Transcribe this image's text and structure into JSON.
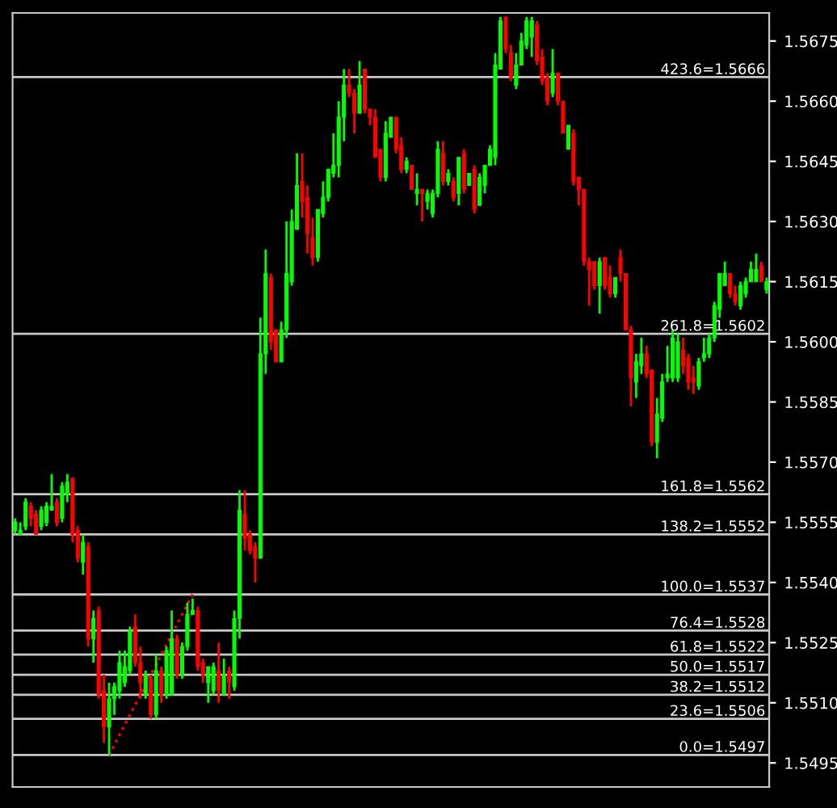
{
  "chart_data": {
    "type": "candlestick",
    "categories": [
      null,
      null,
      null,
      null,
      null,
      null,
      null,
      null,
      null,
      null,
      null,
      null,
      null,
      null,
      null,
      null,
      null,
      null,
      null,
      null,
      null,
      null,
      null,
      null,
      null,
      null,
      null,
      null,
      null,
      null,
      null,
      null,
      null,
      null,
      null,
      null,
      null,
      null,
      null,
      null,
      null,
      null,
      null,
      null,
      null,
      null,
      null,
      null,
      null,
      null,
      null,
      null,
      null,
      null,
      null,
      null,
      null,
      null,
      null,
      null,
      null,
      null,
      null,
      null,
      null,
      null,
      null,
      null,
      null,
      null,
      null,
      null,
      null,
      null,
      null,
      null,
      null,
      null,
      null,
      null,
      null,
      null,
      null,
      null,
      null,
      null,
      null,
      null,
      null,
      null,
      null,
      null,
      null,
      null,
      null,
      null,
      null,
      null,
      null,
      null,
      null,
      null,
      null,
      null,
      null,
      null,
      null,
      null,
      null,
      null,
      null,
      null,
      null,
      null,
      null,
      null,
      null,
      null,
      null,
      null,
      null,
      null,
      null,
      null,
      null,
      null,
      null,
      null,
      null,
      null,
      null,
      null,
      null,
      null,
      null,
      null,
      null,
      null,
      null,
      null,
      null,
      null,
      null,
      null,
      null
    ],
    "ohlc": [
      [
        1.5553,
        1.5556,
        1.5552,
        1.5555
      ],
      [
        1.5552,
        1.5555,
        1.5552,
        1.5553
      ],
      [
        1.5554,
        1.5561,
        1.5553,
        1.556
      ],
      [
        1.5559,
        1.556,
        1.5554,
        1.5556
      ],
      [
        1.5557,
        1.5558,
        1.5552,
        1.5552
      ],
      [
        1.5554,
        1.5559,
        1.5553,
        1.5558
      ],
      [
        1.5555,
        1.556,
        1.5554,
        1.5559
      ],
      [
        1.5558,
        1.5567,
        1.5558,
        1.5559
      ],
      [
        1.556,
        1.5561,
        1.5554,
        1.5555
      ],
      [
        1.5556,
        1.5565,
        1.5555,
        1.5564
      ],
      [
        1.5562,
        1.5567,
        1.556,
        1.5565
      ],
      [
        1.5566,
        1.5566,
        1.555,
        1.5552
      ],
      [
        1.5553,
        1.5554,
        1.5545,
        1.5546
      ],
      [
        1.5545,
        1.5552,
        1.5542,
        1.555
      ],
      [
        1.5549,
        1.555,
        1.5524,
        1.5526
      ],
      [
        1.5526,
        1.5533,
        1.552,
        1.5531
      ],
      [
        1.5533,
        1.5534,
        1.5511,
        1.5512
      ],
      [
        1.5513,
        1.5517,
        1.55,
        1.5504
      ],
      [
        1.5504,
        1.5515,
        1.5497,
        1.5511
      ],
      [
        1.5511,
        1.5515,
        1.5507,
        1.5514
      ],
      [
        1.5513,
        1.5523,
        1.5511,
        1.552
      ],
      [
        1.5515,
        1.5523,
        1.5514,
        1.5519
      ],
      [
        1.5518,
        1.5529,
        1.5517,
        1.5528
      ],
      [
        1.5529,
        1.5532,
        1.5519,
        1.552
      ],
      [
        1.552,
        1.5524,
        1.5511,
        1.5515
      ],
      [
        1.5512,
        1.5518,
        1.5511,
        1.5517
      ],
      [
        1.5516,
        1.5517,
        1.5506,
        1.5507
      ],
      [
        1.5507,
        1.5522,
        1.5506,
        1.5518
      ],
      [
        1.5518,
        1.5519,
        1.551,
        1.5512
      ],
      [
        1.5512,
        1.5524,
        1.5511,
        1.5523
      ],
      [
        1.5512,
        1.5533,
        1.5512,
        1.5526
      ],
      [
        1.5526,
        1.5527,
        1.5516,
        1.5517
      ],
      [
        1.5517,
        1.5525,
        1.5516,
        1.5524
      ],
      [
        1.5524,
        1.5535,
        1.5523,
        1.5532
      ],
      [
        1.5532,
        1.5536,
        1.5532,
        1.5533
      ],
      [
        1.5533,
        1.5534,
        1.5518,
        1.5519
      ],
      [
        1.552,
        1.5521,
        1.5515,
        1.5517
      ],
      [
        1.5515,
        1.5519,
        1.551,
        1.5519
      ],
      [
        1.5513,
        1.552,
        1.5512,
        1.5519
      ],
      [
        1.5518,
        1.5525,
        1.551,
        1.5513
      ],
      [
        1.5512,
        1.5521,
        1.5512,
        1.5517
      ],
      [
        1.5518,
        1.5519,
        1.5511,
        1.5515
      ],
      [
        1.5514,
        1.5533,
        1.5513,
        1.5531
      ],
      [
        1.5531,
        1.5563,
        1.5526,
        1.5558
      ],
      [
        1.5557,
        1.5563,
        1.5548,
        1.5551
      ],
      [
        1.5552,
        1.5553,
        1.5547,
        1.5548
      ],
      [
        1.5549,
        1.555,
        1.554,
        1.5546
      ],
      [
        1.5546,
        1.5606,
        1.5546,
        1.5597
      ],
      [
        1.5597,
        1.5623,
        1.5592,
        1.5617
      ],
      [
        1.5616,
        1.5617,
        1.5598,
        1.56
      ],
      [
        1.5603,
        1.5603,
        1.5595,
        1.5595
      ],
      [
        1.5595,
        1.5605,
        1.5595,
        1.5603
      ],
      [
        1.5603,
        1.563,
        1.5601,
        1.5617
      ],
      [
        1.5615,
        1.5633,
        1.5614,
        1.563
      ],
      [
        1.5628,
        1.5647,
        1.5628,
        1.5639
      ],
      [
        1.564,
        1.5647,
        1.5631,
        1.5635
      ],
      [
        1.5636,
        1.5639,
        1.5622,
        1.5627
      ],
      [
        1.5626,
        1.5631,
        1.5619,
        1.5621
      ],
      [
        1.5621,
        1.5633,
        1.562,
        1.5633
      ],
      [
        1.5632,
        1.564,
        1.5631,
        1.5636
      ],
      [
        1.5636,
        1.5643,
        1.5635,
        1.5643
      ],
      [
        1.5642,
        1.5652,
        1.5641,
        1.5644
      ],
      [
        1.5644,
        1.566,
        1.5641,
        1.5656
      ],
      [
        1.5656,
        1.5668,
        1.565,
        1.5664
      ],
      [
        1.5664,
        1.5668,
        1.5661,
        1.5662
      ],
      [
        1.5662,
        1.5663,
        1.5652,
        1.5657
      ],
      [
        1.5657,
        1.567,
        1.5657,
        1.5664
      ],
      [
        1.5668,
        1.5668,
        1.5657,
        1.5658
      ],
      [
        1.5658,
        1.5658,
        1.5654,
        1.5656
      ],
      [
        1.5656,
        1.5658,
        1.5646,
        1.5646
      ],
      [
        1.5648,
        1.5648,
        1.564,
        1.5641
      ],
      [
        1.5641,
        1.5655,
        1.564,
        1.5652
      ],
      [
        1.5651,
        1.5656,
        1.5651,
        1.5656
      ],
      [
        1.5656,
        1.5656,
        1.5647,
        1.5648
      ],
      [
        1.5649,
        1.5651,
        1.5642,
        1.5643
      ],
      [
        1.5643,
        1.5646,
        1.5642,
        1.5645
      ],
      [
        1.5644,
        1.5644,
        1.5638,
        1.5638
      ],
      [
        1.5637,
        1.5642,
        1.5634,
        1.5638
      ],
      [
        1.5638,
        1.5638,
        1.563,
        1.5637
      ],
      [
        1.5635,
        1.5638,
        1.5633,
        1.5637
      ],
      [
        1.5632,
        1.5638,
        1.5631,
        1.5637
      ],
      [
        1.5637,
        1.565,
        1.5636,
        1.5648
      ],
      [
        1.5647,
        1.565,
        1.5639,
        1.564
      ],
      [
        1.564,
        1.5643,
        1.5639,
        1.5642
      ],
      [
        1.564,
        1.5641,
        1.5635,
        1.5636
      ],
      [
        1.5637,
        1.5646,
        1.5634,
        1.5646
      ],
      [
        1.5647,
        1.5648,
        1.5637,
        1.5638
      ],
      [
        1.5639,
        1.5642,
        1.5639,
        1.5642
      ],
      [
        1.5643,
        1.5644,
        1.5632,
        1.5633
      ],
      [
        1.5634,
        1.5642,
        1.5634,
        1.5641
      ],
      [
        1.5639,
        1.5644,
        1.5637,
        1.5644
      ],
      [
        1.5644,
        1.5649,
        1.5644,
        1.5648
      ],
      [
        1.5646,
        1.5672,
        1.5644,
        1.5669
      ],
      [
        1.5668,
        1.5681,
        1.5668,
        1.568
      ],
      [
        1.5681,
        1.5681,
        1.5672,
        1.5673
      ],
      [
        1.5672,
        1.5674,
        1.5665,
        1.5666
      ],
      [
        1.5664,
        1.5672,
        1.5663,
        1.5669
      ],
      [
        1.5669,
        1.5677,
        1.5669,
        1.5675
      ],
      [
        1.5674,
        1.5681,
        1.5673,
        1.568
      ],
      [
        1.5676,
        1.5681,
        1.5671,
        1.568
      ],
      [
        1.5679,
        1.568,
        1.5669,
        1.567
      ],
      [
        1.5671,
        1.5673,
        1.5664,
        1.5665
      ],
      [
        1.5666,
        1.5667,
        1.5659,
        1.566
      ],
      [
        1.5662,
        1.5673,
        1.5661,
        1.5667
      ],
      [
        1.5667,
        1.5667,
        1.5659,
        1.566
      ],
      [
        1.566,
        1.566,
        1.5652,
        1.5652
      ],
      [
        1.5648,
        1.5654,
        1.5648,
        1.5654
      ],
      [
        1.5652,
        1.5653,
        1.5639,
        1.564
      ],
      [
        1.5641,
        1.5641,
        1.5634,
        1.5638
      ],
      [
        1.5638,
        1.5638,
        1.5619,
        1.562
      ],
      [
        1.562,
        1.5621,
        1.5609,
        1.5618
      ],
      [
        1.562,
        1.562,
        1.5613,
        1.5614
      ],
      [
        1.5614,
        1.5621,
        1.5607,
        1.562
      ],
      [
        1.5621,
        1.5621,
        1.5613,
        1.5614
      ],
      [
        1.5616,
        1.5619,
        1.5611,
        1.5612
      ],
      [
        1.5612,
        1.5616,
        1.5611,
        1.5616
      ],
      [
        1.5621,
        1.5623,
        1.5615,
        1.5617
      ],
      [
        1.5617,
        1.5617,
        1.5603,
        1.5603
      ],
      [
        1.5603,
        1.5604,
        1.5584,
        1.5591
      ],
      [
        1.559,
        1.5597,
        1.5586,
        1.5595
      ],
      [
        1.5594,
        1.5601,
        1.5592,
        1.5597
      ],
      [
        1.5597,
        1.5599,
        1.5591,
        1.5592
      ],
      [
        1.5593,
        1.5593,
        1.5574,
        1.5575
      ],
      [
        1.5575,
        1.5586,
        1.5571,
        1.5582
      ],
      [
        1.5581,
        1.5592,
        1.558,
        1.559
      ],
      [
        1.5591,
        1.5599,
        1.559,
        1.5592
      ],
      [
        1.5591,
        1.5603,
        1.559,
        1.5601
      ],
      [
        1.5591,
        1.5602,
        1.559,
        1.56
      ],
      [
        1.5598,
        1.5601,
        1.5592,
        1.5594
      ],
      [
        1.5596,
        1.5597,
        1.5588,
        1.559
      ],
      [
        1.5591,
        1.5594,
        1.5587,
        1.559
      ],
      [
        1.5589,
        1.5596,
        1.5588,
        1.5595
      ],
      [
        1.5596,
        1.5601,
        1.5595,
        1.5597
      ],
      [
        1.5597,
        1.5602,
        1.5596,
        1.5601
      ],
      [
        1.5601,
        1.561,
        1.56,
        1.5609
      ],
      [
        1.5608,
        1.5617,
        1.5606,
        1.5617
      ],
      [
        1.5614,
        1.562,
        1.5614,
        1.5617
      ],
      [
        1.5617,
        1.5617,
        1.5611,
        1.5612
      ],
      [
        1.5612,
        1.5614,
        1.5609,
        1.561
      ],
      [
        1.5609,
        1.5615,
        1.5608,
        1.5614
      ],
      [
        1.5612,
        1.5616,
        1.5611,
        1.5615
      ],
      [
        1.5615,
        1.562,
        1.5615,
        1.5618
      ],
      [
        1.5615,
        1.5622,
        1.5615,
        1.5618
      ],
      [
        1.5619,
        1.562,
        1.5615,
        1.5615
      ],
      [
        1.5613,
        1.5616,
        1.5612,
        1.5615
      ]
    ],
    "colors": [
      "#00ff00",
      "#00ff00",
      "#00ff00",
      "#ff0000",
      "#ff0000",
      "#00ff00",
      "#00ff00",
      "#00ff00",
      "#ff0000",
      "#00ff00",
      "#00ff00",
      "#ff0000",
      "#ff0000",
      "#00ff00",
      "#ff0000",
      "#00ff00",
      "#ff0000",
      "#ff0000",
      "#00ff00",
      "#00ff00",
      "#00ff00",
      "#00ff00",
      "#00ff00",
      "#ff0000",
      "#ff0000",
      "#00ff00",
      "#ff0000",
      "#00ff00",
      "#ff0000",
      "#00ff00",
      "#00ff00",
      "#ff0000",
      "#00ff00",
      "#00ff00",
      "#00ff00",
      "#ff0000",
      "#ff0000",
      "#00ff00",
      "#00ff00",
      "#ff0000",
      "#00ff00",
      "#ff0000",
      "#00ff00",
      "#00ff00",
      "#ff0000",
      "#ff0000",
      "#ff0000",
      "#00ff00",
      "#00ff00",
      "#ff0000",
      "#ff0000",
      "#00ff00",
      "#00ff00",
      "#00ff00",
      "#00ff00",
      "#ff0000",
      "#ff0000",
      "#ff0000",
      "#00ff00",
      "#00ff00",
      "#00ff00",
      "#00ff00",
      "#00ff00",
      "#00ff00",
      "#ff0000",
      "#ff0000",
      "#00ff00",
      "#ff0000",
      "#ff0000",
      "#ff0000",
      "#ff0000",
      "#00ff00",
      "#00ff00",
      "#ff0000",
      "#ff0000",
      "#00ff00",
      "#ff0000",
      "#00ff00",
      "#ff0000",
      "#00ff00",
      "#00ff00",
      "#00ff00",
      "#ff0000",
      "#00ff00",
      "#ff0000",
      "#00ff00",
      "#ff0000",
      "#00ff00",
      "#ff0000",
      "#00ff00",
      "#00ff00",
      "#00ff00",
      "#00ff00",
      "#00ff00",
      "#ff0000",
      "#ff0000",
      "#00ff00",
      "#00ff00",
      "#00ff00",
      "#00ff00",
      "#ff0000",
      "#ff0000",
      "#ff0000",
      "#00ff00",
      "#ff0000",
      "#ff0000",
      "#00ff00",
      "#ff0000",
      "#ff0000",
      "#ff0000",
      "#ff0000",
      "#ff0000",
      "#00ff00",
      "#ff0000",
      "#ff0000",
      "#00ff00",
      "#ff0000",
      "#ff0000",
      "#ff0000",
      "#00ff00",
      "#00ff00",
      "#ff0000",
      "#ff0000",
      "#00ff00",
      "#00ff00",
      "#00ff00",
      "#00ff00",
      "#00ff00",
      "#ff0000",
      "#ff0000",
      "#ff0000",
      "#00ff00",
      "#00ff00",
      "#00ff00",
      "#00ff00",
      "#00ff00",
      "#00ff00",
      "#ff0000",
      "#ff0000",
      "#00ff00",
      "#00ff00",
      "#00ff00",
      "#00ff00",
      "#ff0000",
      "#00ff00"
    ],
    "series": [
      {
        "type": "line",
        "values": [
          null,
          null,
          null,
          null,
          null,
          null,
          null,
          null,
          null,
          null,
          null,
          null,
          null,
          null,
          null,
          null,
          null,
          null,
          1.5497,
          null,
          null,
          null,
          null,
          null,
          null,
          null,
          null,
          null,
          null,
          null,
          null,
          null,
          null,
          null,
          1.5537,
          null,
          null,
          null,
          null,
          null,
          null,
          null,
          null,
          null,
          null,
          null,
          null,
          null,
          null,
          null,
          null,
          null,
          null,
          null,
          null,
          null,
          null,
          null,
          null,
          null,
          null,
          null,
          null,
          null,
          null,
          null,
          null,
          null,
          null,
          null,
          null,
          null,
          null,
          null,
          null,
          null,
          null,
          null,
          null,
          null,
          null,
          null,
          null,
          null,
          null,
          null,
          null,
          null,
          null,
          null,
          null,
          null,
          null,
          null,
          null,
          null,
          null,
          null,
          null,
          null,
          null,
          null,
          null,
          null,
          null,
          null,
          null,
          null,
          null,
          null,
          null,
          null,
          null,
          null,
          null,
          null,
          null,
          null,
          null,
          null,
          null,
          null,
          null,
          null,
          null,
          null,
          null,
          null,
          null,
          null,
          null,
          null,
          null,
          null,
          null,
          null,
          null,
          null,
          null,
          null,
          null,
          null,
          null,
          null,
          null
        ],
        "color": "#ff0000",
        "line_style": "dotted"
      }
    ],
    "ylim": [
      1.5489,
      1.5682
    ],
    "yticks": [
      1.5495,
      {
        "value": 1.551,
        "label": "1.5510"
      },
      1.5525,
      {
        "value": 1.554,
        "label": "1.5540"
      },
      1.5555,
      {
        "value": 1.557,
        "label": "1.5570"
      },
      1.5585,
      {
        "value": 1.56,
        "label": "1.5600"
      },
      1.5615,
      {
        "value": 1.563,
        "label": "1.5630"
      },
      1.5645,
      {
        "value": 1.566,
        "label": "1.5660"
      },
      1.5675
    ],
    "tick_labels": "y",
    "ref_lines": [
      {
        "axis": "y",
        "value": 1.5666,
        "label": "423.6=1.5666",
        "color": "#c8c8c8"
      },
      {
        "axis": "y",
        "value": 1.5602,
        "label": "261.8=1.5602",
        "color": "#c8c8c8"
      },
      {
        "axis": "y",
        "value": 1.5562,
        "label": "161.8=1.5562",
        "color": "#c8c8c8"
      },
      {
        "axis": "y",
        "value": 1.5552,
        "label": "138.2=1.5552",
        "color": "#c8c8c8"
      },
      {
        "axis": "y",
        "value": 1.5537,
        "label": "100.0=1.5537",
        "color": "#c8c8c8"
      },
      {
        "axis": "y",
        "value": 1.5528,
        "label": "76.4=1.5528",
        "color": "#c8c8c8"
      },
      {
        "axis": "y",
        "value": 1.5522,
        "label": "61.8=1.5522",
        "color": "#c8c8c8"
      },
      {
        "axis": "y",
        "value": 1.5517,
        "label": "50.0=1.5517",
        "color": "#c8c8c8"
      },
      {
        "axis": "y",
        "value": 1.5512,
        "label": "38.2=1.5512",
        "color": "#c8c8c8"
      },
      {
        "axis": "y",
        "value": 1.5506,
        "label": "23.6=1.5506",
        "color": "#c8c8c8"
      },
      {
        "axis": "y",
        "value": 1.5497,
        "label": "0.0=1.5497",
        "color": "#c8c8c8"
      }
    ],
    "grid": false
  }
}
